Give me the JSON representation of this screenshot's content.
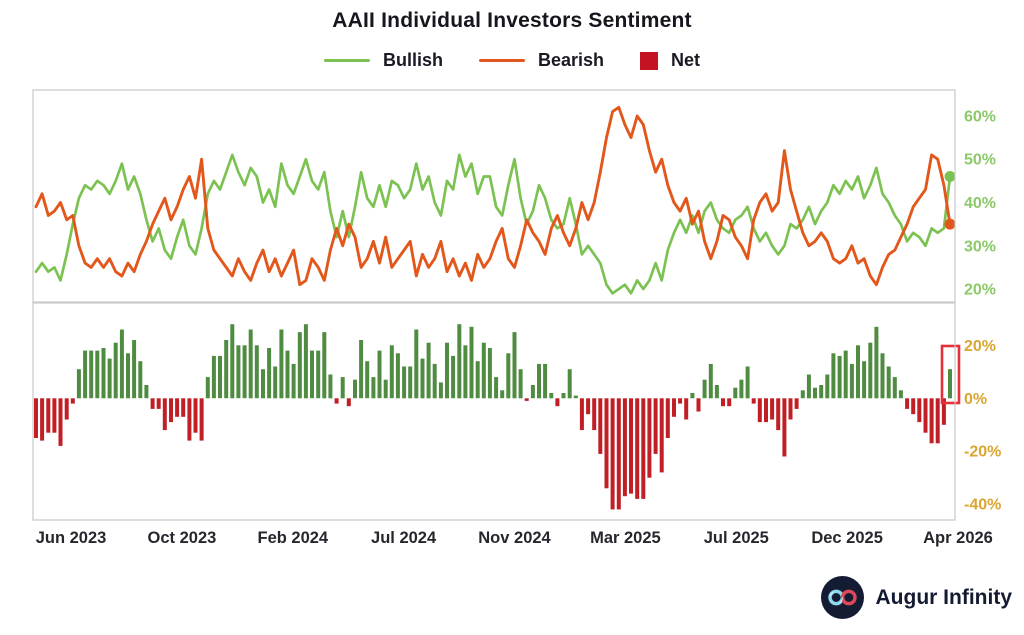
{
  "title": "AAII Individual Investors Sentiment",
  "legend": {
    "bullish": "Bullish",
    "bearish": "Bearish",
    "net": "Net"
  },
  "branding": {
    "name": "Augur Infinity"
  },
  "colors": {
    "bullish": "#7cc252",
    "bearish": "#e2581c",
    "net_positive": "#4f8c42",
    "net_negative": "#c01f26",
    "net_legend": "#c41322",
    "highlight": "#e5303a",
    "axis_top_labels": "#8cc968",
    "axis_bottom_labels": "#dba532",
    "x_labels": "#26262e",
    "panel_border": "#c9c9c9",
    "title_text": "#16161f",
    "brand_text": "#131b33"
  },
  "chart_data": {
    "type": "line+bar",
    "title": "AAII Individual Investors Sentiment",
    "x_unit": "weekly surveys",
    "x_tick_labels": [
      "Jun 2023",
      "Oct 2023",
      "Feb 2024",
      "Jul 2024",
      "Nov 2024",
      "Mar 2025",
      "Jul 2025",
      "Dec 2025",
      "Apr 2026"
    ],
    "grid": false,
    "legend_position": "top",
    "top_panel": {
      "type": "line",
      "ylim": [
        17,
        66
      ],
      "y_ticks": [
        "60%",
        "50%",
        "40%",
        "30%",
        "20%"
      ],
      "end_markers": true,
      "series": [
        {
          "name": "Bullish",
          "values": [
            24,
            26,
            24,
            25,
            22,
            28,
            35,
            41,
            44,
            43,
            45,
            44,
            42,
            45,
            49,
            43,
            46,
            42,
            36,
            31,
            34,
            29,
            27,
            32,
            36,
            30,
            28,
            34,
            42,
            45,
            43,
            47,
            51,
            47,
            44,
            48,
            46,
            40,
            43,
            39,
            49,
            44,
            42,
            46,
            50,
            45,
            43,
            47,
            38,
            32,
            38,
            32,
            39,
            47,
            41,
            39,
            44,
            39,
            45,
            44,
            41,
            43,
            49,
            43,
            46,
            40,
            37,
            45,
            43,
            51,
            46,
            49,
            42,
            46,
            46,
            39,
            37,
            44,
            50,
            41,
            35,
            38,
            44,
            41,
            36,
            34,
            35,
            41,
            35,
            28,
            30,
            28,
            26,
            21,
            19,
            20,
            21,
            19,
            22,
            20,
            22,
            26,
            22,
            29,
            33,
            36,
            33,
            37,
            33,
            38,
            40,
            36,
            34,
            33,
            36,
            37,
            39,
            34,
            31,
            33,
            30,
            28,
            30,
            35,
            34,
            36,
            39,
            35,
            38,
            40,
            44,
            42,
            45,
            43,
            46,
            41,
            44,
            48,
            42,
            40,
            37,
            35,
            31,
            33,
            32,
            30,
            34,
            33,
            34,
            46
          ]
        },
        {
          "name": "Bearish",
          "values": [
            39,
            42,
            37,
            38,
            40,
            36,
            37,
            30,
            26,
            25,
            27,
            25,
            27,
            24,
            23,
            26,
            24,
            28,
            31,
            35,
            38,
            41,
            36,
            39,
            43,
            46,
            41,
            50,
            34,
            29,
            27,
            25,
            23,
            27,
            24,
            22,
            26,
            29,
            24,
            27,
            23,
            26,
            29,
            21,
            22,
            27,
            25,
            22,
            29,
            34,
            30,
            35,
            32,
            25,
            27,
            31,
            26,
            32,
            25,
            27,
            29,
            31,
            23,
            28,
            25,
            27,
            31,
            24,
            27,
            23,
            26,
            22,
            28,
            25,
            27,
            31,
            34,
            27,
            25,
            30,
            36,
            33,
            31,
            28,
            34,
            37,
            33,
            30,
            34,
            40,
            36,
            40,
            47,
            55,
            61,
            62,
            58,
            55,
            60,
            58,
            52,
            47,
            50,
            44,
            40,
            38,
            41,
            35,
            38,
            31,
            27,
            31,
            37,
            36,
            32,
            30,
            27,
            36,
            40,
            42,
            38,
            40,
            52,
            43,
            38,
            33,
            30,
            31,
            33,
            31,
            27,
            26,
            27,
            30,
            26,
            27,
            23,
            21,
            25,
            28,
            29,
            32,
            35,
            39,
            41,
            43,
            51,
            50,
            44,
            35
          ]
        }
      ],
      "last_values": {
        "bullish": 46,
        "bearish": 35
      }
    },
    "bottom_panel": {
      "type": "bar",
      "ylim": [
        -46,
        36
      ],
      "y_ticks": [
        "20%",
        "0%",
        "-20%",
        "-40%"
      ],
      "highlight_last_bar": true,
      "series": [
        {
          "name": "Net",
          "values": [
            -15,
            -16,
            -13,
            -13,
            -18,
            -8,
            -2,
            11,
            18,
            18,
            18,
            19,
            15,
            21,
            26,
            17,
            22,
            14,
            5,
            -4,
            -4,
            -12,
            -9,
            -7,
            -7,
            -16,
            -13,
            -16,
            8,
            16,
            16,
            22,
            28,
            20,
            20,
            26,
            20,
            11,
            19,
            12,
            26,
            18,
            13,
            25,
            28,
            18,
            18,
            25,
            9,
            -2,
            8,
            -3,
            7,
            22,
            14,
            8,
            18,
            7,
            20,
            17,
            12,
            12,
            26,
            15,
            21,
            13,
            6,
            21,
            16,
            28,
            20,
            27,
            14,
            21,
            19,
            8,
            3,
            17,
            25,
            11,
            -1,
            5,
            13,
            13,
            2,
            -3,
            2,
            11,
            1,
            -12,
            -6,
            -12,
            -21,
            -34,
            -42,
            -42,
            -37,
            -36,
            -38,
            -38,
            -30,
            -21,
            -28,
            -15,
            -7,
            -2,
            -8,
            2,
            -5,
            7,
            13,
            5,
            -3,
            -3,
            4,
            7,
            12,
            -2,
            -9,
            -9,
            -8,
            -12,
            -22,
            -8,
            -4,
            3,
            9,
            4,
            5,
            9,
            17,
            16,
            18,
            13,
            20,
            14,
            21,
            27,
            17,
            12,
            8,
            3,
            -4,
            -6,
            -9,
            -13,
            -17,
            -17,
            -10,
            11
          ]
        }
      ]
    }
  }
}
